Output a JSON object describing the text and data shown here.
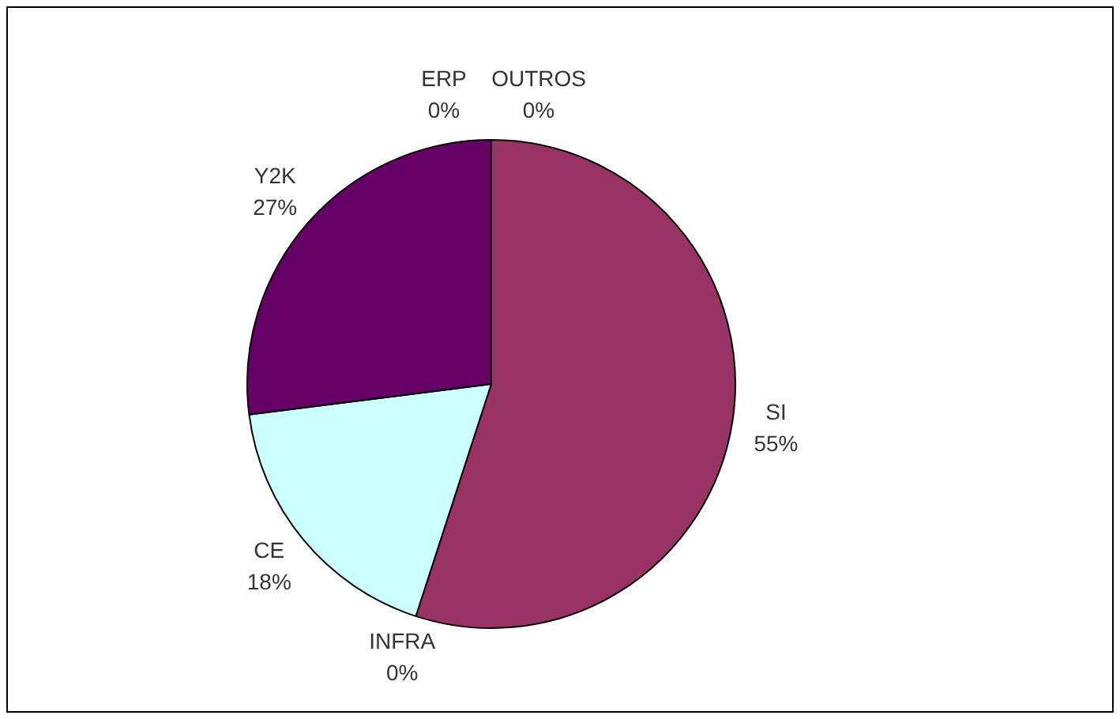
{
  "chart_data": {
    "type": "pie",
    "categories": [
      "SI",
      "INFRA",
      "CE",
      "Y2K",
      "ERP",
      "OUTROS"
    ],
    "values": [
      55,
      0,
      18,
      27,
      0,
      0
    ],
    "value_labels": [
      "55%",
      "0%",
      "18%",
      "27%",
      "0%",
      "0%"
    ],
    "colors": [
      "#993366",
      "#ffffcc",
      "#ccffff",
      "#660066",
      "#9999ff",
      "#ff8080"
    ],
    "legend": false
  }
}
